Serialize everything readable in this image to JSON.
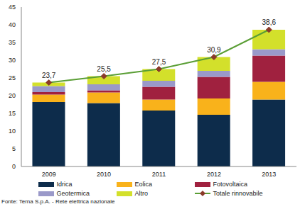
{
  "chart_data": {
    "type": "bar",
    "stacked": true,
    "grid": false,
    "legend": "bottom",
    "categories": [
      "2009",
      "2010",
      "2011",
      "2012",
      "2013"
    ],
    "ylim": [
      0,
      45
    ],
    "yticks": [
      0,
      5,
      10,
      15,
      20,
      25,
      30,
      35,
      40,
      45
    ],
    "source": "Fonte: Terna S.p.A. - Rete elettrica nazionale",
    "series": [
      {
        "name": "Idrica",
        "type": "bar",
        "color": "#0d2c4b",
        "values": [
          18.2,
          17.9,
          15.8,
          14.6,
          18.9
        ]
      },
      {
        "name": "Eolica",
        "type": "bar",
        "color": "#f9b21b",
        "values": [
          2.1,
          3.0,
          3.1,
          4.6,
          5.0
        ]
      },
      {
        "name": "Fotovoltaica",
        "type": "bar",
        "color": "#a0213f",
        "values": [
          0.7,
          0.6,
          3.6,
          6.1,
          7.4
        ]
      },
      {
        "name": "Geotermica",
        "type": "bar",
        "color": "#9a99c9",
        "values": [
          1.7,
          1.7,
          1.7,
          1.7,
          1.8
        ]
      },
      {
        "name": "Altro",
        "type": "bar",
        "color": "#d3e02b",
        "values": [
          1.0,
          2.3,
          3.3,
          3.9,
          5.5
        ]
      },
      {
        "name": "Totale rinnovabile",
        "type": "line",
        "color": "#5a9e35",
        "marker": "diamond",
        "data_labels": true,
        "values": [
          23.7,
          25.5,
          27.5,
          30.9,
          38.6
        ],
        "value_labels": [
          "23,7",
          "25,5",
          "27,5",
          "30,9",
          "38,6"
        ]
      }
    ]
  }
}
